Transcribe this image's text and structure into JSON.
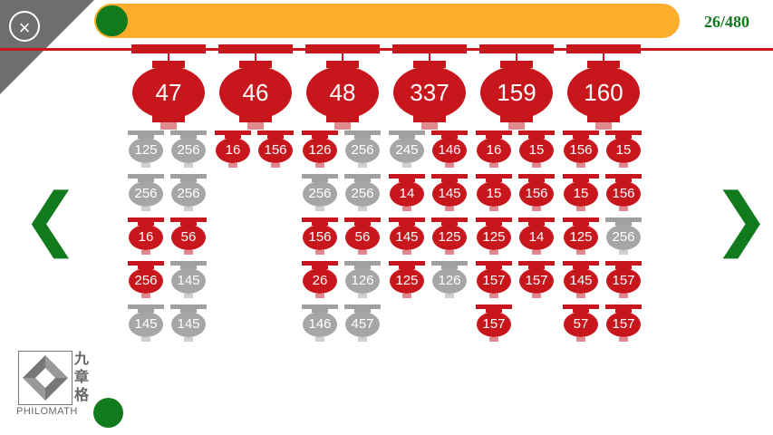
{
  "header": {
    "close_icon": "close-icon",
    "close_label": "×",
    "progress_value": 0.054,
    "counter": "26/480"
  },
  "nav": {
    "prev": "❮",
    "next": "❯",
    "prev_icon": "chevron-left-icon",
    "next_icon": "chevron-right-icon"
  },
  "colors": {
    "red": "#c8161d",
    "gray": "#a6a6a6",
    "green": "#117a1d",
    "orange": "#fbad2b"
  },
  "columns": [
    {
      "target": "47",
      "rows": [
        [
          {
            "v": "125",
            "c": "gray"
          },
          {
            "v": "256",
            "c": "gray"
          }
        ],
        [
          {
            "v": "256",
            "c": "gray"
          },
          {
            "v": "256",
            "c": "gray"
          }
        ],
        [
          {
            "v": "16",
            "c": "red"
          },
          {
            "v": "56",
            "c": "red"
          }
        ],
        [
          {
            "v": "256",
            "c": "red"
          },
          {
            "v": "145",
            "c": "gray"
          }
        ],
        [
          {
            "v": "145",
            "c": "gray"
          },
          {
            "v": "145",
            "c": "gray"
          }
        ]
      ]
    },
    {
      "target": "46",
      "rows": [
        [
          {
            "v": "16",
            "c": "red"
          },
          {
            "v": "156",
            "c": "red"
          }
        ]
      ]
    },
    {
      "target": "48",
      "rows": [
        [
          {
            "v": "126",
            "c": "red"
          },
          {
            "v": "256",
            "c": "gray"
          }
        ],
        [
          {
            "v": "256",
            "c": "gray"
          },
          {
            "v": "256",
            "c": "gray"
          }
        ],
        [
          {
            "v": "156",
            "c": "red"
          },
          {
            "v": "56",
            "c": "red"
          }
        ],
        [
          {
            "v": "26",
            "c": "red"
          },
          {
            "v": "126",
            "c": "gray"
          }
        ],
        [
          {
            "v": "146",
            "c": "gray"
          },
          {
            "v": "457",
            "c": "gray"
          }
        ]
      ]
    },
    {
      "target": "337",
      "rows": [
        [
          {
            "v": "245",
            "c": "gray"
          },
          {
            "v": "146",
            "c": "red"
          }
        ],
        [
          {
            "v": "14",
            "c": "red"
          },
          {
            "v": "145",
            "c": "red"
          }
        ],
        [
          {
            "v": "145",
            "c": "red"
          },
          {
            "v": "125",
            "c": "red"
          }
        ],
        [
          {
            "v": "125",
            "c": "red"
          },
          {
            "v": "126",
            "c": "gray"
          }
        ]
      ]
    },
    {
      "target": "159",
      "rows": [
        [
          {
            "v": "16",
            "c": "red"
          },
          {
            "v": "15",
            "c": "red"
          }
        ],
        [
          {
            "v": "15",
            "c": "red"
          },
          {
            "v": "156",
            "c": "red"
          }
        ],
        [
          {
            "v": "125",
            "c": "red"
          },
          {
            "v": "14",
            "c": "red"
          }
        ],
        [
          {
            "v": "157",
            "c": "red"
          },
          {
            "v": "157",
            "c": "red"
          }
        ],
        [
          {
            "v": "157",
            "c": "red"
          }
        ]
      ]
    },
    {
      "target": "160",
      "rows": [
        [
          {
            "v": "156",
            "c": "red"
          },
          {
            "v": "15",
            "c": "red"
          }
        ],
        [
          {
            "v": "15",
            "c": "red"
          },
          {
            "v": "156",
            "c": "red"
          }
        ],
        [
          {
            "v": "125",
            "c": "red"
          },
          {
            "v": "256",
            "c": "gray"
          }
        ],
        [
          {
            "v": "145",
            "c": "red"
          },
          {
            "v": "157",
            "c": "red"
          }
        ],
        [
          {
            "v": "57",
            "c": "red"
          },
          {
            "v": "157",
            "c": "red"
          }
        ]
      ]
    }
  ],
  "logo": {
    "cn_1": "九",
    "cn_2": "章",
    "cn_3": "格",
    "en": "PHILOMATH"
  }
}
